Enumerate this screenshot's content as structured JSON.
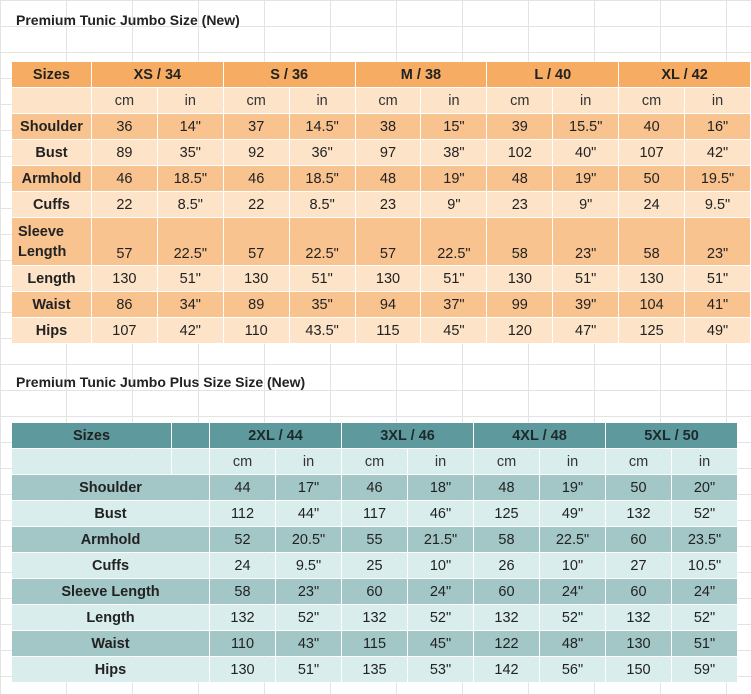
{
  "table1": {
    "title": "Premium Tunic Jumbo Size (New)",
    "sizes_label": "Sizes",
    "sizes": [
      "XS / 34",
      "S / 36",
      "M / 38",
      "L / 40",
      "XL / 42"
    ],
    "units": [
      "cm",
      "in",
      "cm",
      "in",
      "cm",
      "in",
      "cm",
      "in",
      "cm",
      "in"
    ],
    "rows": [
      {
        "label": "Shoulder",
        "values": [
          "36",
          "14\"",
          "37",
          "14.5\"",
          "38",
          "15\"",
          "39",
          "15.5\"",
          "40",
          "16\""
        ]
      },
      {
        "label": "Bust",
        "values": [
          "89",
          "35\"",
          "92",
          "36\"",
          "97",
          "38\"",
          "102",
          "40\"",
          "107",
          "42\""
        ]
      },
      {
        "label": "Armhold",
        "values": [
          "46",
          "18.5\"",
          "46",
          "18.5\"",
          "48",
          "19\"",
          "48",
          "19\"",
          "50",
          "19.5\""
        ]
      },
      {
        "label": "Cuffs",
        "values": [
          "22",
          "8.5\"",
          "22",
          "8.5\"",
          "23",
          "9\"",
          "23",
          "9\"",
          "24",
          "9.5\""
        ]
      },
      {
        "label": "Sleeve Length",
        "values": [
          "57",
          "22.5\"",
          "57",
          "22.5\"",
          "57",
          "22.5\"",
          "58",
          "23\"",
          "58",
          "23\""
        ]
      },
      {
        "label": "Length",
        "values": [
          "130",
          "51\"",
          "130",
          "51\"",
          "130",
          "51\"",
          "130",
          "51\"",
          "130",
          "51\""
        ]
      },
      {
        "label": "Waist",
        "values": [
          "86",
          "34\"",
          "89",
          "35\"",
          "94",
          "37\"",
          "99",
          "39\"",
          "104",
          "41\""
        ]
      },
      {
        "label": "Hips",
        "values": [
          "107",
          "42\"",
          "110",
          "43.5\"",
          "115",
          "45\"",
          "120",
          "47\"",
          "125",
          "49\""
        ]
      }
    ]
  },
  "table2": {
    "title": "Premium Tunic Jumbo Plus Size Size (New)",
    "sizes_label": "Sizes",
    "sizes": [
      "2XL / 44",
      "3XL / 46",
      "4XL / 48",
      "5XL / 50"
    ],
    "units": [
      "cm",
      "in",
      "cm",
      "in",
      "cm",
      "in",
      "cm",
      "in"
    ],
    "rows": [
      {
        "label": "Shoulder",
        "values": [
          "44",
          "17\"",
          "46",
          "18\"",
          "48",
          "19\"",
          "50",
          "20\""
        ]
      },
      {
        "label": "Bust",
        "values": [
          "112",
          "44\"",
          "117",
          "46\"",
          "125",
          "49\"",
          "132",
          "52\""
        ]
      },
      {
        "label": "Armhold",
        "values": [
          "52",
          "20.5\"",
          "55",
          "21.5\"",
          "58",
          "22.5\"",
          "60",
          "23.5\""
        ]
      },
      {
        "label": "Cuffs",
        "values": [
          "24",
          "9.5\"",
          "25",
          "10\"",
          "26",
          "10\"",
          "27",
          "10.5\""
        ]
      },
      {
        "label": "Sleeve Length",
        "values": [
          "58",
          "23\"",
          "60",
          "24\"",
          "60",
          "24\"",
          "60",
          "24\""
        ]
      },
      {
        "label": "Length",
        "values": [
          "132",
          "52\"",
          "132",
          "52\"",
          "132",
          "52\"",
          "132",
          "52\""
        ]
      },
      {
        "label": "Waist",
        "values": [
          "110",
          "43\"",
          "115",
          "45\"",
          "122",
          "48\"",
          "130",
          "51\""
        ]
      },
      {
        "label": "Hips",
        "values": [
          "130",
          "51\"",
          "135",
          "53\"",
          "142",
          "56\"",
          "150",
          "59\""
        ]
      }
    ]
  },
  "colors": {
    "orange_header": "#f6ac63",
    "orange_dark_row": "#f9c390",
    "orange_light_row": "#fde3c8",
    "teal_header": "#5e9a9d",
    "teal_dark_row": "#a3c7c7",
    "teal_light_row": "#d9eded"
  }
}
